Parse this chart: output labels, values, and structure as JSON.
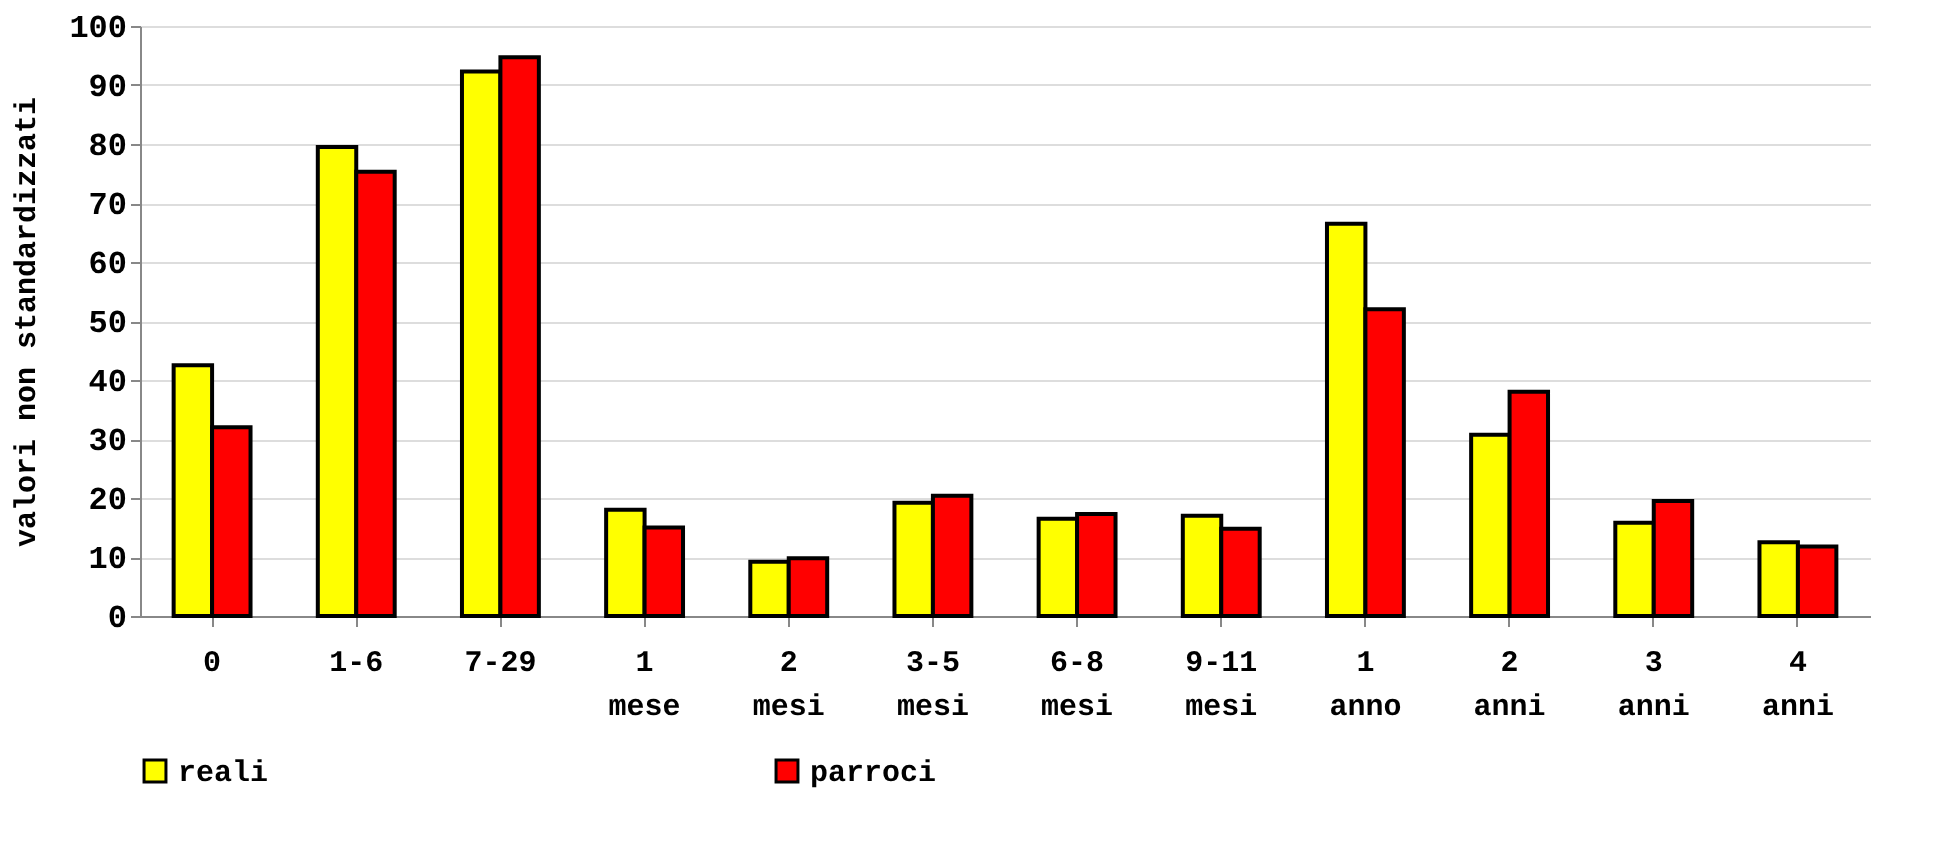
{
  "chart_data": {
    "type": "bar",
    "ylabel": "valori non standardizzati",
    "categories": [
      "0",
      "1-6",
      "7-29",
      "1 mese",
      "2 mesi",
      "3-5 mesi",
      "6-8 mesi",
      "9-11 mesi",
      "1 anno",
      "2 anni",
      "3 anni",
      "4 anni"
    ],
    "series": [
      {
        "name": "reali",
        "color": "#ffff00",
        "values": [
          42.5,
          79.5,
          92.3,
          18,
          9.2,
          19.2,
          16.5,
          17,
          66.5,
          30.7,
          15.8,
          12.5
        ]
      },
      {
        "name": "parroci",
        "color": "#ff0000",
        "values": [
          32,
          75.3,
          94.7,
          15,
          9.8,
          20.4,
          17.3,
          14.8,
          52,
          38,
          19.5,
          11.8
        ]
      }
    ],
    "ylim": [
      0,
      100
    ],
    "yticks": [
      0,
      10,
      20,
      30,
      40,
      50,
      60,
      70,
      80,
      90,
      100
    ],
    "grid": "y",
    "legend": "bottom"
  }
}
